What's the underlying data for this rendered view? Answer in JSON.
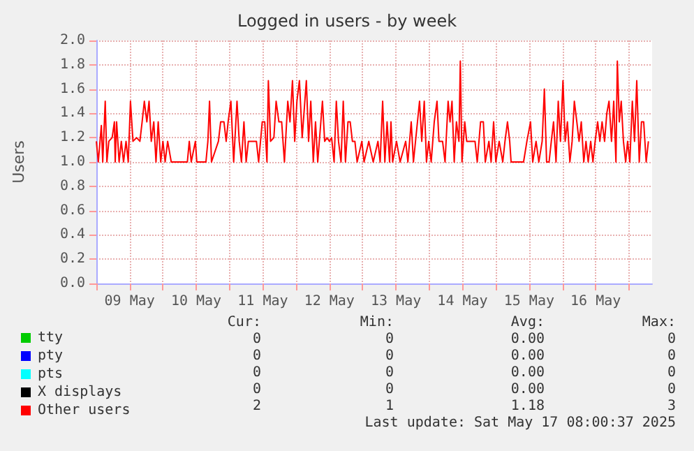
{
  "chart_data": {
    "type": "line",
    "title": "Logged in users - by week",
    "ylabel": "Users",
    "xlim": [
      "2025-05-09T00:00",
      "2025-05-17T08:20"
    ],
    "xticks": [
      {
        "value": "2025-05-09T00:00",
        "label": null
      },
      {
        "value": "2025-05-09T12:00",
        "label": "09 May"
      },
      {
        "value": "2025-05-10T00:00",
        "label": null
      },
      {
        "value": "2025-05-10T12:00",
        "label": "10 May"
      },
      {
        "value": "2025-05-11T00:00",
        "label": null
      },
      {
        "value": "2025-05-11T12:00",
        "label": "11 May"
      },
      {
        "value": "2025-05-12T00:00",
        "label": null
      },
      {
        "value": "2025-05-12T12:00",
        "label": "12 May"
      },
      {
        "value": "2025-05-13T00:00",
        "label": null
      },
      {
        "value": "2025-05-13T12:00",
        "label": "13 May"
      },
      {
        "value": "2025-05-14T00:00",
        "label": null
      },
      {
        "value": "2025-05-14T12:00",
        "label": "14 May"
      },
      {
        "value": "2025-05-15T00:00",
        "label": null
      },
      {
        "value": "2025-05-15T12:00",
        "label": "15 May"
      },
      {
        "value": "2025-05-16T00:00",
        "label": null
      },
      {
        "value": "2025-05-16T12:00",
        "label": "16 May"
      },
      {
        "value": "2025-05-17T00:00",
        "label": null
      }
    ],
    "ylim": [
      0,
      2
    ],
    "yticks": [
      {
        "value": 0,
        "label": "0.0"
      },
      {
        "value": 0.2,
        "label": "0.2"
      },
      {
        "value": 0.4,
        "label": "0.4"
      },
      {
        "value": 0.6,
        "label": "0.6"
      },
      {
        "value": 0.8,
        "label": "0.8"
      },
      {
        "value": 1,
        "label": "1.0"
      },
      {
        "value": 1.2,
        "label": "1.2"
      },
      {
        "value": 1.4,
        "label": "1.4"
      },
      {
        "value": 1.6,
        "label": "1.6"
      },
      {
        "value": 1.8,
        "label": "1.8"
      },
      {
        "value": 2,
        "label": "2.0"
      }
    ],
    "grid": true,
    "legend": "bottom left",
    "marker": "none",
    "line_style": "solid",
    "series": [
      {
        "name": "tty",
        "color": "#00cc00"
      },
      {
        "name": "pty",
        "color": "#0000ff"
      },
      {
        "name": "pts",
        "color": "#00ffff"
      },
      {
        "name": "X displays",
        "color": "#000000"
      },
      {
        "name": "Other users",
        "color": "#ff0000",
        "x": [
          "2025-05-09T00:00",
          "2025-05-09T00:42",
          "2025-05-09T01:48",
          "2025-05-09T02:18",
          "2025-05-09T03:12",
          "2025-05-09T03:48",
          "2025-05-09T04:30",
          "2025-05-09T05:42",
          "2025-05-09T06:30",
          "2025-05-09T06:48",
          "2025-05-09T07:18",
          "2025-05-09T08:12",
          "2025-05-09T09:00",
          "2025-05-09T09:48",
          "2025-05-09T10:42",
          "2025-05-09T11:30",
          "2025-05-09T12:18",
          "2025-05-09T13:12",
          "2025-05-09T14:30",
          "2025-05-09T15:42",
          "2025-05-09T16:30",
          "2025-05-09T17:18",
          "2025-05-09T18:12",
          "2025-05-09T19:00",
          "2025-05-09T19:48",
          "2025-05-09T20:42",
          "2025-05-09T21:30",
          "2025-05-09T22:18",
          "2025-05-09T23:12",
          "2025-05-10T00:00",
          "2025-05-10T00:48",
          "2025-05-10T01:42",
          "2025-05-10T03:00",
          "2025-05-10T08:48",
          "2025-05-10T09:30",
          "2025-05-10T10:12",
          "2025-05-10T11:42",
          "2025-05-10T12:12",
          "2025-05-10T15:30",
          "2025-05-10T16:12",
          "2025-05-10T16:48",
          "2025-05-10T17:30",
          "2025-05-10T20:00",
          "2025-05-10T20:48",
          "2025-05-10T22:00",
          "2025-05-10T22:48",
          "2025-05-10T23:30",
          "2025-05-11T00:30",
          "2025-05-11T01:30",
          "2025-05-11T02:42",
          "2025-05-11T03:30",
          "2025-05-11T04:18",
          "2025-05-11T05:12",
          "2025-05-11T06:00",
          "2025-05-11T06:48",
          "2025-05-11T09:42",
          "2025-05-11T10:30",
          "2025-05-11T11:48",
          "2025-05-11T12:42",
          "2025-05-11T13:30",
          "2025-05-11T14:00",
          "2025-05-11T14:48",
          "2025-05-11T16:00",
          "2025-05-11T16:48",
          "2025-05-11T17:48",
          "2025-05-11T18:48",
          "2025-05-11T19:48",
          "2025-05-11T21:00",
          "2025-05-11T21:48",
          "2025-05-11T22:42",
          "2025-05-11T23:30",
          "2025-05-12T00:18",
          "2025-05-12T01:12",
          "2025-05-12T02:12",
          "2025-05-12T03:42",
          "2025-05-12T04:30",
          "2025-05-12T05:18",
          "2025-05-12T06:12",
          "2025-05-12T07:00",
          "2025-05-12T07:48",
          "2025-05-12T09:30",
          "2025-05-12T10:18",
          "2025-05-12T11:12",
          "2025-05-12T12:00",
          "2025-05-12T12:48",
          "2025-05-12T13:42",
          "2025-05-12T14:30",
          "2025-05-12T15:18",
          "2025-05-12T16:12",
          "2025-05-12T17:00",
          "2025-05-12T17:48",
          "2025-05-12T18:42",
          "2025-05-12T19:30",
          "2025-05-12T20:18",
          "2025-05-12T21:12",
          "2025-05-12T22:00",
          "2025-05-12T23:42",
          "2025-05-13T00:30",
          "2025-05-13T02:12",
          "2025-05-13T03:48",
          "2025-05-13T05:30",
          "2025-05-13T06:18",
          "2025-05-13T07:12",
          "2025-05-13T08:00",
          "2025-05-13T08:48",
          "2025-05-13T09:42",
          "2025-05-13T10:12",
          "2025-05-13T10:48",
          "2025-05-13T12:12",
          "2025-05-13T13:30",
          "2025-05-13T15:30",
          "2025-05-13T16:18",
          "2025-05-13T17:30",
          "2025-05-13T18:18",
          "2025-05-13T20:30",
          "2025-05-13T21:18",
          "2025-05-13T22:12",
          "2025-05-13T23:00",
          "2025-05-13T23:48",
          "2025-05-14T00:42",
          "2025-05-14T01:48",
          "2025-05-14T02:48",
          "2025-05-14T03:30",
          "2025-05-14T04:48",
          "2025-05-14T05:42",
          "2025-05-14T06:48",
          "2025-05-14T07:30",
          "2025-05-14T08:12",
          "2025-05-14T09:00",
          "2025-05-14T09:48",
          "2025-05-14T10:42",
          "2025-05-14T11:12",
          "2025-05-14T11:48",
          "2025-05-14T12:48",
          "2025-05-14T13:30",
          "2025-05-14T16:30",
          "2025-05-14T17:18",
          "2025-05-14T18:30",
          "2025-05-14T19:30",
          "2025-05-14T20:12",
          "2025-05-14T21:30",
          "2025-05-14T22:18",
          "2025-05-14T23:12",
          "2025-05-15T00:00",
          "2025-05-15T01:12",
          "2025-05-15T02:30",
          "2025-05-15T03:18",
          "2025-05-15T04:12",
          "2025-05-15T05:00",
          "2025-05-15T05:30",
          "2025-05-15T10:00",
          "2025-05-15T11:12",
          "2025-05-15T12:30",
          "2025-05-15T13:18",
          "2025-05-15T14:30",
          "2025-05-15T15:30",
          "2025-05-15T16:42",
          "2025-05-15T17:30",
          "2025-05-15T18:18",
          "2025-05-15T19:12",
          "2025-05-15T20:00",
          "2025-05-15T20:48",
          "2025-05-15T21:42",
          "2025-05-15T22:30",
          "2025-05-15T23:18",
          "2025-05-16T00:12",
          "2025-05-16T01:00",
          "2025-05-16T01:48",
          "2025-05-16T02:42",
          "2025-05-16T03:30",
          "2025-05-16T04:18",
          "2025-05-16T05:12",
          "2025-05-16T06:00",
          "2025-05-16T06:48",
          "2025-05-16T07:42",
          "2025-05-16T08:30",
          "2025-05-16T09:18",
          "2025-05-16T10:12",
          "2025-05-16T11:00",
          "2025-05-16T11:48",
          "2025-05-16T12:42",
          "2025-05-16T13:30",
          "2025-05-16T14:18",
          "2025-05-16T15:12",
          "2025-05-16T16:00",
          "2025-05-16T16:48",
          "2025-05-16T17:42",
          "2025-05-16T18:30",
          "2025-05-16T19:18",
          "2025-05-16T19:48",
          "2025-05-16T20:30",
          "2025-05-16T21:12",
          "2025-05-16T22:00",
          "2025-05-16T22:48",
          "2025-05-16T23:30",
          "2025-05-17T00:18",
          "2025-05-17T01:12",
          "2025-05-17T02:00",
          "2025-05-17T02:48",
          "2025-05-17T03:42",
          "2025-05-17T04:30",
          "2025-05-17T05:18",
          "2025-05-17T06:12",
          "2025-05-17T07:00"
        ],
        "values": [
          1.17,
          1,
          1.3,
          1,
          1.5,
          1,
          1.17,
          1.2,
          1.33,
          1,
          1.33,
          1,
          1.17,
          1,
          1.17,
          1,
          1.5,
          1.17,
          1.2,
          1.17,
          1.33,
          1.5,
          1.33,
          1.5,
          1.17,
          1.33,
          1,
          1.33,
          1,
          1.17,
          1,
          1.17,
          1,
          1,
          1.17,
          1,
          1.17,
          1,
          1,
          1.17,
          1.5,
          1,
          1.17,
          1.33,
          1.33,
          1.17,
          1.33,
          1.5,
          1,
          1.5,
          1.17,
          1,
          1.33,
          1,
          1.17,
          1.17,
          1,
          1.33,
          1.33,
          1,
          1.67,
          1.17,
          1.2,
          1.5,
          1.33,
          1.33,
          1,
          1.5,
          1.33,
          1.67,
          1.17,
          1.5,
          1.67,
          1.2,
          1.67,
          1.17,
          1.5,
          1,
          1.33,
          1,
          1.5,
          1.17,
          1.2,
          1.17,
          1.2,
          1,
          1.5,
          1.17,
          1,
          1.5,
          1,
          1.33,
          1.33,
          1.17,
          1.17,
          1,
          1.17,
          1,
          1.17,
          1,
          1.17,
          1,
          1.5,
          1,
          1.33,
          1,
          1.33,
          1,
          1.17,
          1,
          1.17,
          1,
          1.33,
          1,
          1.5,
          1.17,
          1.5,
          1,
          1.17,
          1,
          1.33,
          1.5,
          1.17,
          1.17,
          1,
          1.5,
          1.33,
          1.5,
          1,
          1.33,
          1.17,
          1.83,
          1,
          1.33,
          1.17,
          1.17,
          1,
          1.33,
          1.33,
          1,
          1.17,
          1,
          1.33,
          1,
          1.17,
          1,
          1.17,
          1.33,
          1.17,
          1,
          1,
          1.17,
          1.33,
          1,
          1.17,
          1,
          1.17,
          1.6,
          1,
          1,
          1.17,
          1.33,
          1,
          1.5,
          1.17,
          1.67,
          1.17,
          1.33,
          1,
          1.17,
          1.5,
          1.33,
          1.17,
          1.33,
          1,
          1.17,
          1,
          1.17,
          1,
          1.17,
          1.33,
          1.17,
          1.33,
          1.17,
          1.4,
          1.5,
          1.17,
          1.5,
          1,
          1.83,
          1.33,
          1.5,
          1.17,
          1,
          1.17,
          1,
          1.5,
          1.17,
          1.67,
          1,
          1.33,
          1.33,
          1,
          1.17
        ]
      }
    ],
    "annotations": [
      "Cur:",
      "Min:",
      "Avg:",
      "Max:",
      "0",
      "0",
      "0.00",
      "0",
      "0",
      "0",
      "0.00",
      "0",
      "0",
      "0",
      "0.00",
      "0",
      "0",
      "0",
      "0.00",
      "0",
      "2",
      "1",
      "1.18",
      "3",
      "Last update: Sat May 17 08:00:37 2025"
    ]
  }
}
